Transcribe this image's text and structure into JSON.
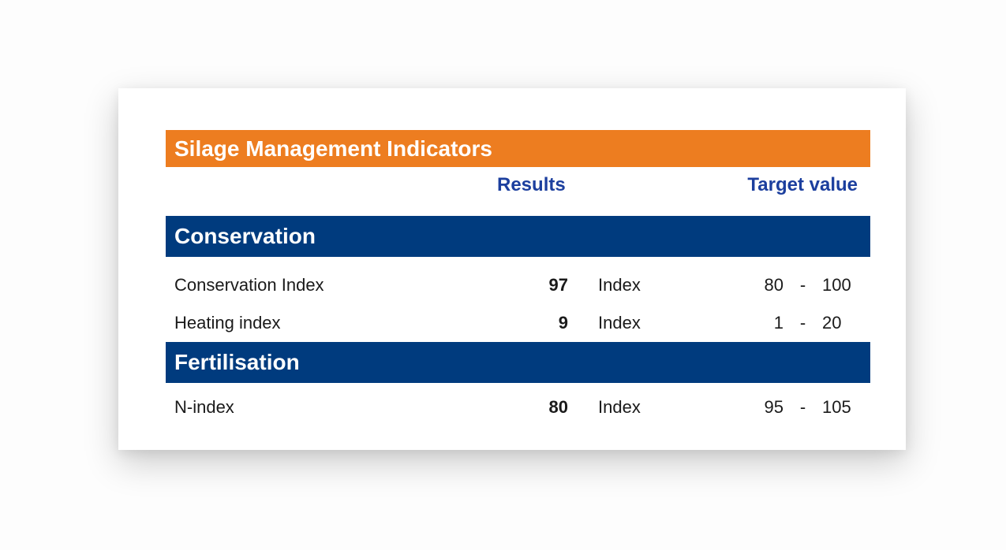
{
  "report": {
    "title": "Silage Management Indicators",
    "columns": {
      "results": "Results",
      "target": "Target value"
    },
    "sections": [
      {
        "label": "Conservation",
        "rows": [
          {
            "label": "Conservation Index",
            "result": "97",
            "unit": "Index",
            "target_min": "80",
            "dash": "-",
            "target_max": "100"
          },
          {
            "label": "Heating index",
            "result": "9",
            "unit": "Index",
            "target_min": "1",
            "dash": "-",
            "target_max": "20"
          }
        ]
      },
      {
        "label": "Fertilisation",
        "rows": [
          {
            "label": "N-index",
            "result": "80",
            "unit": "Index",
            "target_min": "95",
            "dash": "-",
            "target_max": "105"
          }
        ]
      }
    ],
    "colors": {
      "header_orange": "#ED7D20",
      "section_blue": "#003B7E",
      "column_header_blue": "#1C3F9E"
    }
  }
}
